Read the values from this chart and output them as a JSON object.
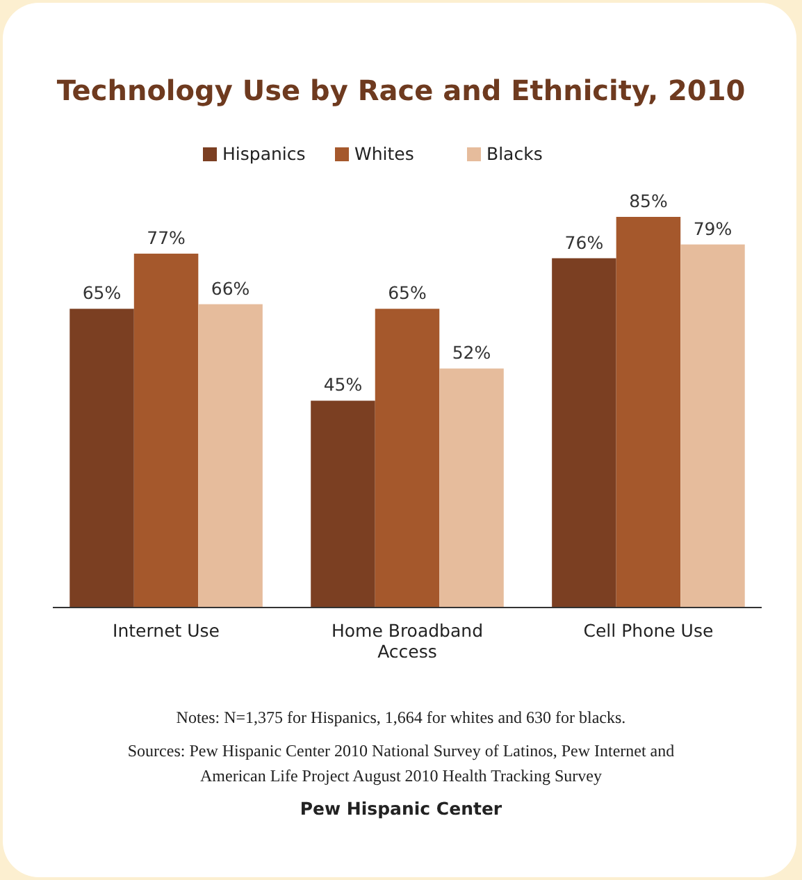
{
  "chart_data": {
    "type": "bar",
    "title": "Technology Use by Race and Ethnicity, 2010",
    "categories": [
      "Internet Use",
      "Home Broadband Access",
      "Cell Phone Use"
    ],
    "series": [
      {
        "name": "Hispanics",
        "color": "#7b3f22",
        "values": [
          65,
          45,
          76
        ],
        "value_labels": [
          "65%",
          "45%",
          "76%"
        ]
      },
      {
        "name": "Whites",
        "color": "#a5582c",
        "values": [
          77,
          65,
          85
        ],
        "value_labels": [
          "77%",
          "65%",
          "85%"
        ]
      },
      {
        "name": "Blacks",
        "color": "#e6bc9c",
        "values": [
          66,
          52,
          79
        ],
        "value_labels": [
          "66%",
          "52%",
          "79%"
        ]
      }
    ],
    "legend": "top",
    "grid": false,
    "annotations": [
      "Notes: N=1,375 for Hispanics, 1,664 for whites and 630 for blacks.",
      "Sources: Pew Hispanic Center 2010 National Survey of Latinos, Pew Internet and American Life Project August 2010 Health Tracking Survey",
      "Pew Hispanic Center"
    ]
  }
}
